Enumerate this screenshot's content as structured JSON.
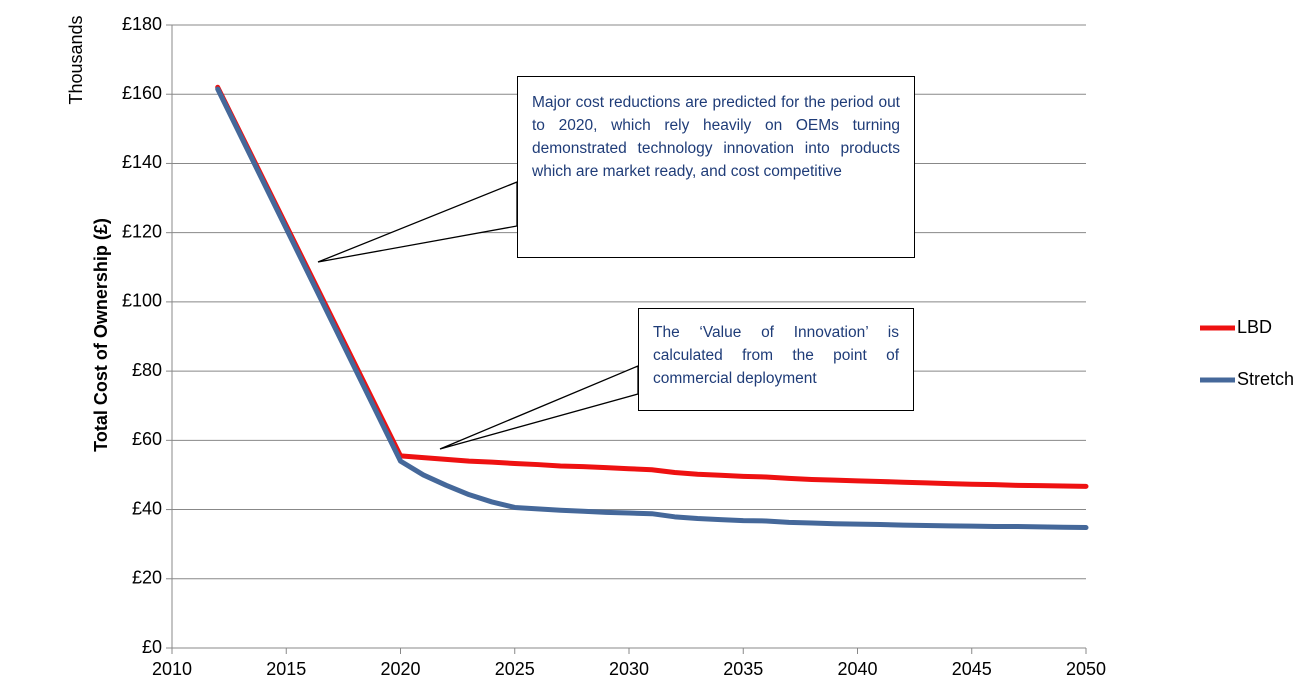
{
  "chart_data": {
    "type": "line",
    "y_label": "Total Cost of Ownership (£)",
    "y_unit_label": "Thousands",
    "annotations": [
      "Major cost reductions are predicted for the period out to 2020, which rely heavily on OEMs turning demonstrated technology innovation into products which are market ready, and cost competitive",
      "The ‘Value of Innovation’ is calculated from the point of commercial deployment"
    ],
    "x": [
      2012,
      2020,
      2021,
      2022,
      2023,
      2024,
      2025,
      2026,
      2027,
      2028,
      2029,
      2030,
      2031,
      2032,
      2033,
      2034,
      2035,
      2036,
      2037,
      2038,
      2039,
      2040,
      2041,
      2042,
      2043,
      2044,
      2045,
      2046,
      2047,
      2048,
      2049,
      2050
    ],
    "series": [
      {
        "name": "LBD",
        "color": "#ee1111",
        "values": [
          162,
          55.5,
          55,
          54.5,
          54,
          53.7,
          53.3,
          53,
          52.6,
          52.4,
          52.1,
          51.8,
          51.5,
          50.7,
          50.2,
          49.9,
          49.6,
          49.4,
          49,
          48.7,
          48.5,
          48.3,
          48.1,
          47.9,
          47.7,
          47.5,
          47.3,
          47.2,
          47,
          46.9,
          46.8,
          46.7
        ]
      },
      {
        "name": "Stretch",
        "color": "#45689a",
        "values": [
          161.5,
          54,
          50,
          47,
          44.3,
          42.2,
          40.6,
          40.2,
          39.8,
          39.5,
          39.2,
          39,
          38.8,
          37.9,
          37.4,
          37.1,
          36.8,
          36.7,
          36.3,
          36.1,
          35.9,
          35.8,
          35.7,
          35.5,
          35.4,
          35.3,
          35.2,
          35.1,
          35.1,
          35,
          34.9,
          34.8
        ]
      }
    ],
    "xlim": [
      2010,
      2050
    ],
    "xticks": [
      2010,
      2015,
      2020,
      2025,
      2030,
      2035,
      2040,
      2045,
      2050
    ],
    "ylim": [
      0,
      180
    ],
    "yticks": [
      {
        "value": 0,
        "label": "£0"
      },
      {
        "value": 20,
        "label": "£20"
      },
      {
        "value": 40,
        "label": "£40"
      },
      {
        "value": 60,
        "label": "£60"
      },
      {
        "value": 80,
        "label": "£80"
      },
      {
        "value": 100,
        "label": "£100"
      },
      {
        "value": 120,
        "label": "£120"
      },
      {
        "value": 140,
        "label": "£140"
      },
      {
        "value": 160,
        "label": "£160"
      },
      {
        "value": 180,
        "label": "£180"
      }
    ],
    "grid": true,
    "legend": "right"
  }
}
